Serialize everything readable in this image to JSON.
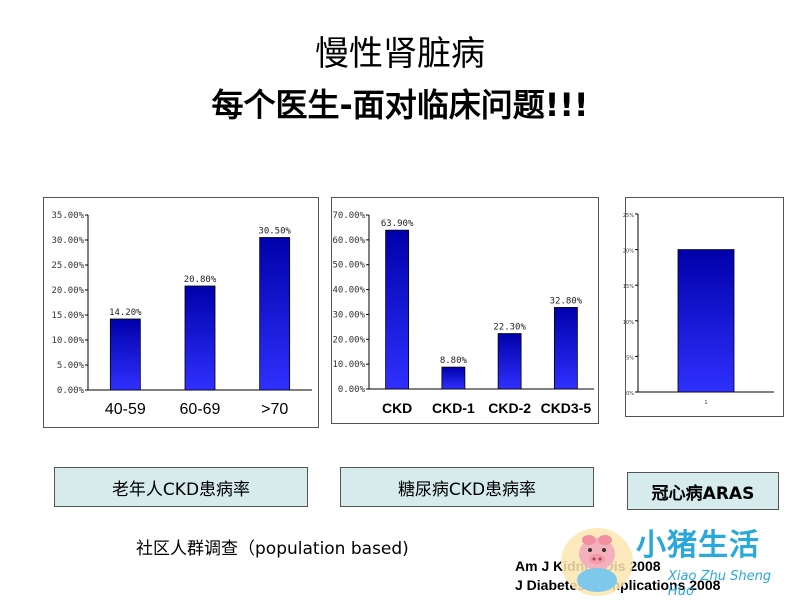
{
  "slide": {
    "title_line1": "慢性肾脏病",
    "title_line2": "每个医生-面对临床问题!!!",
    "label_elderly": "老年人CKD患病率",
    "label_diabetes": "糖尿病CKD患病率",
    "label_cad": "冠心病ARAS",
    "survey_note": "社区人群调查（population  based)",
    "ref_line1": "Am J Kidney Dis 2008",
    "ref_line2": "J Diabetes Complications 2008",
    "logo_text": "小猪生活",
    "logo_sub": "Xiao Zhu Sheng Huo"
  },
  "colors": {
    "bar_top": "#0000aa",
    "bar_bottom": "#3030ff",
    "label_box_bg": "#d6ecec",
    "logo_blue": "#29a8dc"
  },
  "chart_data": [
    {
      "type": "bar",
      "categories": [
        "40-59",
        "60-69",
        ">70"
      ],
      "values": [
        14.2,
        20.8,
        30.5
      ],
      "data_labels": [
        "14.20%",
        "20.80%",
        "30.50%"
      ],
      "y_ticks": [
        "0.00%",
        "5.00%",
        "10.00%",
        "15.00%",
        "20.00%",
        "25.00%",
        "30.00%",
        "35.00%"
      ],
      "ylim": [
        0,
        35
      ],
      "y_step": 5
    },
    {
      "type": "bar",
      "categories": [
        "CKD",
        "CKD-1",
        "CKD-2",
        "CKD3-5"
      ],
      "values": [
        63.9,
        8.8,
        22.3,
        32.8
      ],
      "data_labels": [
        "63.90%",
        "8.80%",
        "22.30%",
        "32.80%"
      ],
      "y_ticks": [
        "0.00%",
        "10.00%",
        "20.00%",
        "30.00%",
        "40.00%",
        "50.00%",
        "60.00%",
        "70.00%"
      ],
      "ylim": [
        0,
        70
      ],
      "y_step": 10
    },
    {
      "type": "bar",
      "categories": [
        "1"
      ],
      "values": [
        20
      ],
      "data_labels": [],
      "y_ticks": [
        "0%",
        "5%",
        "10%",
        "15%",
        "20%",
        "25%"
      ],
      "ylim": [
        0,
        25
      ],
      "y_step": 5
    }
  ]
}
